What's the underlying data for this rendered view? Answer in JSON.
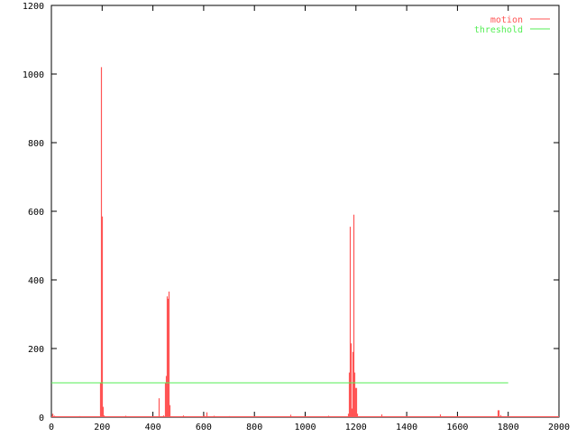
{
  "chart_data": {
    "type": "bar",
    "style": "impulses",
    "title": "",
    "xlabel": "",
    "ylabel": "",
    "xlim": [
      0,
      2000
    ],
    "ylim": [
      0,
      1200
    ],
    "xticks": [
      "0",
      "200",
      "400",
      "600",
      "800",
      "1000",
      "1200",
      "1400",
      "1600",
      "1800",
      "2000"
    ],
    "yticks": [
      "0",
      "200",
      "400",
      "600",
      "800",
      "1000",
      "1200"
    ],
    "grid": false,
    "legend_position": "top-right",
    "series": [
      {
        "name": "motion",
        "color": "#ff5555",
        "x": [
          2,
          5,
          9,
          110,
          192,
          195,
          199,
          202,
          205,
          290,
          423,
          440,
          448,
          451,
          455,
          458,
          462,
          465,
          520,
          600,
          610,
          640,
          700,
          940,
          1090,
          1168,
          1172,
          1176,
          1179,
          1183,
          1186,
          1190,
          1194,
          1197,
          1201,
          1205,
          1300,
          1530,
          1757,
          1762,
          1770
        ],
        "y": [
          10,
          8,
          4,
          3,
          100,
          1020,
          585,
          30,
          5,
          4,
          55,
          5,
          100,
          120,
          352,
          345,
          366,
          35,
          5,
          6,
          14,
          4,
          3,
          7,
          4,
          10,
          130,
          555,
          215,
          25,
          190,
          590,
          130,
          85,
          85,
          10,
          8,
          8,
          20,
          20,
          6
        ]
      },
      {
        "name": "threshold",
        "color": "#55ee55",
        "x": [
          0,
          1800
        ],
        "y": [
          100,
          100
        ]
      }
    ]
  }
}
